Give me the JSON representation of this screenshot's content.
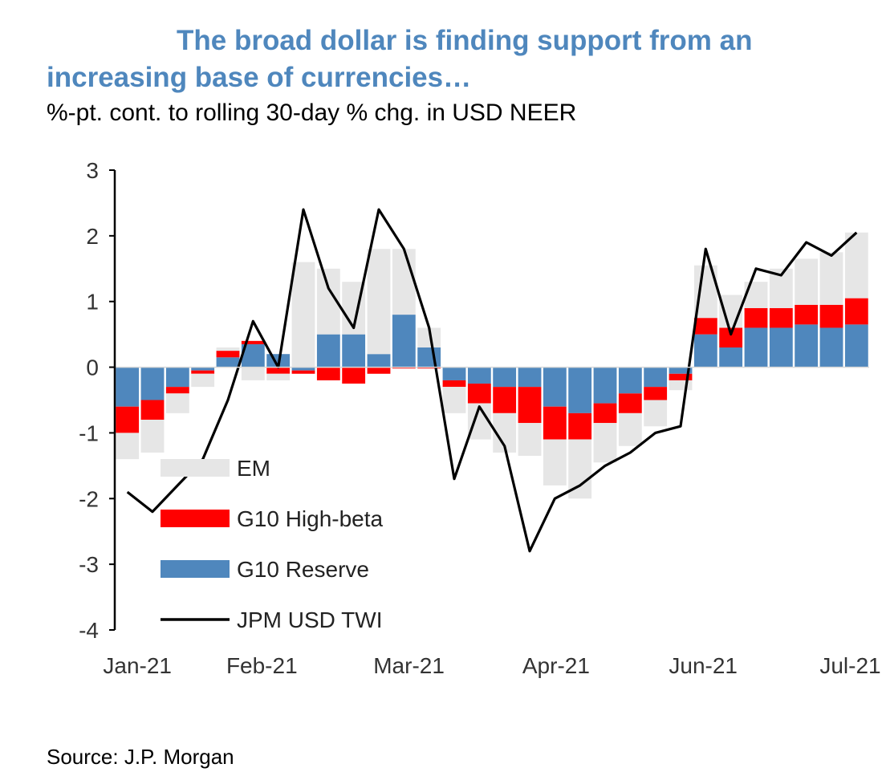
{
  "colors": {
    "title": "#4f87bd",
    "em": "#e6e6e6",
    "g10_high_beta": "#ff0000",
    "g10_reserve": "#4f87bd",
    "twi": "#000000"
  },
  "chart_data": {
    "type": "area",
    "title": "The broad dollar is finding support from an increasing base of currencies…",
    "subtitle": "%-pt. cont. to rolling 30-day % chg. in USD NEER",
    "source": "Source: J.P. Morgan",
    "ylim": [
      -4,
      3
    ],
    "yticks": [
      3,
      2,
      1,
      0,
      -1,
      -2,
      -3,
      -4
    ],
    "xticks": [
      "Jan-21",
      "Feb-21",
      "Mar-21",
      "Apr-21",
      "Jun-21",
      "Jul-21"
    ],
    "grid": false,
    "legend_position": "lower-left",
    "dates": [
      "Jan-04",
      "Jan-11",
      "Jan-18",
      "Jan-25",
      "Feb-01",
      "Feb-08",
      "Feb-15",
      "Feb-22",
      "Mar-01",
      "Mar-08",
      "Mar-15",
      "Mar-22",
      "Mar-29",
      "Apr-05",
      "Apr-12",
      "Apr-19",
      "Apr-26",
      "May-03",
      "May-10",
      "May-17",
      "May-24",
      "May-31",
      "Jun-07",
      "Jun-14",
      "Jun-21",
      "Jun-28",
      "Jul-05",
      "Jul-12",
      "Jul-19",
      "Jul-26"
    ],
    "series": [
      {
        "name": "EM",
        "values": [
          -0.4,
          -0.5,
          -0.3,
          -0.2,
          0.05,
          -0.2,
          -0.1,
          1.6,
          1.0,
          0.8,
          1.6,
          1.0,
          0.3,
          -0.4,
          -0.55,
          -0.6,
          -0.5,
          -0.7,
          -0.9,
          -0.6,
          -0.5,
          -0.4,
          -0.15,
          0.8,
          0.5,
          0.4,
          0.6,
          0.7,
          0.8,
          1.0
        ]
      },
      {
        "name": "G10 High-beta",
        "values": [
          -0.4,
          -0.3,
          -0.1,
          -0.05,
          0.1,
          0.05,
          -0.1,
          -0.05,
          -0.2,
          -0.25,
          -0.1,
          -0.02,
          -0.02,
          -0.1,
          -0.3,
          -0.4,
          -0.55,
          -0.5,
          -0.4,
          -0.3,
          -0.3,
          -0.2,
          -0.1,
          0.25,
          0.3,
          0.3,
          0.3,
          0.3,
          0.35,
          0.4
        ]
      },
      {
        "name": "G10 Reserve",
        "values": [
          -0.6,
          -0.5,
          -0.3,
          -0.05,
          0.15,
          0.35,
          0.2,
          -0.05,
          0.5,
          0.5,
          0.2,
          0.8,
          0.3,
          -0.2,
          -0.25,
          -0.3,
          -0.3,
          -0.6,
          -0.7,
          -0.55,
          -0.4,
          -0.3,
          -0.1,
          0.5,
          0.3,
          0.6,
          0.6,
          0.65,
          0.6,
          0.65
        ]
      },
      {
        "name": "JPM USD TWI",
        "values": [
          -1.9,
          -2.2,
          -1.8,
          -1.4,
          -0.5,
          0.7,
          0.0,
          2.4,
          1.2,
          0.6,
          2.4,
          1.8,
          0.6,
          -1.7,
          -0.6,
          -1.2,
          -2.8,
          -2.0,
          -1.8,
          -1.5,
          -1.3,
          -1.0,
          -0.9,
          1.8,
          0.5,
          1.5,
          1.4,
          1.9,
          1.7,
          2.05
        ]
      }
    ]
  }
}
